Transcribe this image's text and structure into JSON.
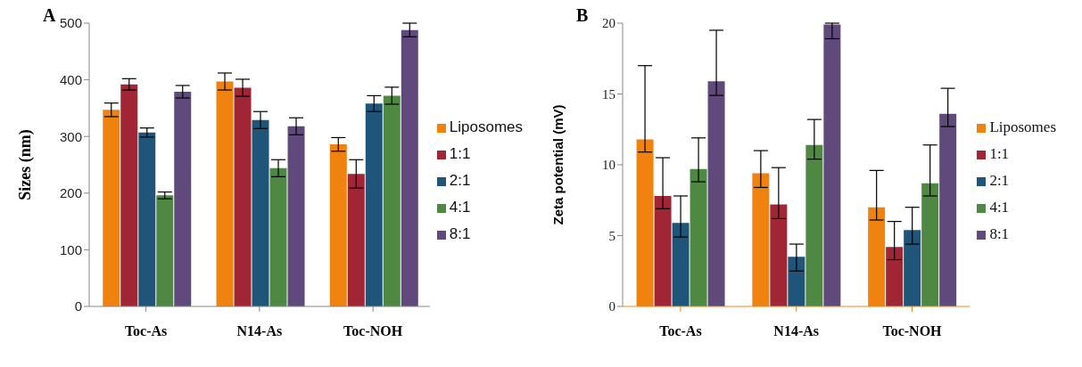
{
  "chart_data": [
    {
      "type": "bar",
      "title": "A",
      "ylabel": "Sizes (nm)",
      "categories": [
        "Toc-As",
        "N14-As",
        "Toc-NOH"
      ],
      "ylim": [
        0,
        500
      ],
      "yticks": [
        0,
        100,
        200,
        300,
        400,
        500
      ],
      "grid": false,
      "legend": "right",
      "series": [
        {
          "name": "Liposomes",
          "color": "#f0820f",
          "values": [
            347,
            397,
            286
          ],
          "errors": [
            12,
            15,
            12
          ]
        },
        {
          "name": "1:1",
          "color": "#a02535",
          "values": [
            392,
            386,
            234
          ],
          "errors": [
            10,
            15,
            25
          ]
        },
        {
          "name": "2:1",
          "color": "#1f5578",
          "values": [
            307,
            329,
            358
          ],
          "errors": [
            8,
            15,
            14
          ]
        },
        {
          "name": "4:1",
          "color": "#4e8842",
          "values": [
            196,
            244,
            372
          ],
          "errors": [
            6,
            15,
            15
          ]
        },
        {
          "name": "8:1",
          "color": "#5f4a7b",
          "values": [
            379,
            318,
            488
          ],
          "errors": [
            11,
            15,
            12
          ]
        }
      ]
    },
    {
      "type": "bar",
      "title": "B",
      "ylabel": "Zeta potential (mV)",
      "categories": [
        "Toc-As",
        "N14-As",
        "Toc-NOH"
      ],
      "ylim": [
        0,
        20
      ],
      "yticks": [
        0,
        5,
        10,
        15,
        20
      ],
      "grid": false,
      "legend": "right",
      "series": [
        {
          "name": "Liposomes",
          "color": "#f0820f",
          "values": [
            11.8,
            9.4,
            7.0
          ],
          "errors": [
            [
              10.9,
              17.0
            ],
            [
              8.4,
              11.0
            ],
            [
              6.1,
              9.6
            ]
          ]
        },
        {
          "name": "1:1",
          "color": "#a02535",
          "values": [
            7.8,
            7.2,
            4.2
          ],
          "errors": [
            [
              6.9,
              10.5
            ],
            [
              6.2,
              9.8
            ],
            [
              3.3,
              6.0
            ]
          ]
        },
        {
          "name": "2:1",
          "color": "#1f5578",
          "values": [
            5.9,
            3.5,
            5.4
          ],
          "errors": [
            [
              4.9,
              7.8
            ],
            [
              2.5,
              4.4
            ],
            [
              4.4,
              7.0
            ]
          ]
        },
        {
          "name": "4:1",
          "color": "#4e8842",
          "values": [
            9.7,
            11.4,
            8.7
          ],
          "errors": [
            [
              8.8,
              11.9
            ],
            [
              10.4,
              13.2
            ],
            [
              7.8,
              11.4
            ]
          ]
        },
        {
          "name": "8:1",
          "color": "#5f4a7b",
          "values": [
            15.9,
            19.9,
            13.6
          ],
          "errors": [
            [
              14.9,
              19.5
            ],
            [
              18.9,
              20.0
            ],
            [
              12.7,
              15.4
            ]
          ]
        }
      ]
    }
  ]
}
